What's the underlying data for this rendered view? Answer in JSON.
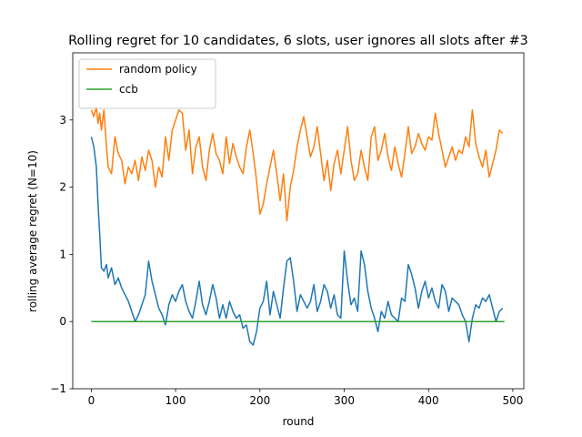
{
  "chart_data": {
    "type": "line",
    "title": "Rolling regret for 10 candidates, 6 slots, user ignores all slots after #3",
    "xlabel": "round",
    "ylabel": "rolling average regret (N=10)",
    "xlim": [
      -22,
      513
    ],
    "ylim": [
      -1,
      4.0
    ],
    "x_ticks": [
      0,
      100,
      200,
      300,
      400,
      500
    ],
    "y_ticks": [
      -1,
      0,
      1,
      2,
      3
    ],
    "legend_position": "top-left",
    "grid": false,
    "series": [
      {
        "name": "",
        "color": "#1f77b4",
        "x": [
          0,
          3,
          6,
          8,
          10,
          12,
          15,
          18,
          20,
          24,
          28,
          32,
          36,
          40,
          44,
          48,
          52,
          56,
          60,
          64,
          68,
          72,
          76,
          80,
          84,
          88,
          92,
          96,
          100,
          104,
          108,
          112,
          116,
          120,
          124,
          128,
          132,
          136,
          140,
          144,
          148,
          152,
          156,
          160,
          164,
          168,
          172,
          176,
          180,
          184,
          188,
          192,
          196,
          200,
          204,
          208,
          212,
          216,
          220,
          224,
          228,
          232,
          236,
          240,
          244,
          248,
          252,
          256,
          260,
          264,
          268,
          272,
          276,
          280,
          284,
          288,
          292,
          296,
          300,
          304,
          308,
          312,
          316,
          320,
          324,
          328,
          332,
          336,
          340,
          344,
          348,
          352,
          356,
          360,
          364,
          368,
          372,
          376,
          380,
          384,
          388,
          392,
          396,
          400,
          404,
          408,
          412,
          416,
          420,
          424,
          428,
          432,
          436,
          440,
          444,
          448,
          452,
          456,
          460,
          464,
          468,
          472,
          476,
          480,
          484,
          488
        ],
        "values": [
          2.75,
          2.6,
          2.3,
          1.75,
          1.3,
          0.8,
          0.75,
          0.85,
          0.65,
          0.8,
          0.55,
          0.65,
          0.5,
          0.4,
          0.3,
          0.15,
          0.0,
          0.1,
          0.25,
          0.4,
          0.9,
          0.6,
          0.4,
          0.2,
          0.1,
          -0.05,
          0.25,
          0.4,
          0.3,
          0.45,
          0.55,
          0.3,
          0.15,
          0.05,
          0.3,
          0.6,
          0.25,
          0.1,
          0.3,
          0.55,
          0.35,
          0.05,
          0.25,
          0.05,
          0.3,
          0.15,
          0.05,
          0.1,
          -0.1,
          -0.05,
          -0.3,
          -0.35,
          -0.15,
          0.2,
          0.3,
          0.6,
          0.1,
          0.45,
          0.25,
          0.05,
          0.5,
          0.9,
          0.95,
          0.6,
          0.15,
          0.4,
          0.3,
          0.2,
          0.3,
          0.55,
          0.15,
          0.3,
          0.55,
          0.45,
          0.2,
          0.4,
          0.1,
          0.05,
          1.05,
          0.6,
          0.25,
          0.35,
          0.15,
          1.05,
          0.85,
          0.45,
          0.2,
          0.05,
          -0.15,
          0.15,
          0.05,
          0.3,
          0.1,
          0.05,
          0.0,
          0.35,
          0.3,
          0.85,
          0.7,
          0.5,
          0.2,
          0.45,
          0.6,
          0.35,
          0.5,
          0.3,
          0.2,
          0.55,
          0.45,
          0.15,
          0.35,
          0.3,
          0.25,
          0.1,
          0.0,
          -0.3,
          0.05,
          0.25,
          0.2,
          0.35,
          0.3,
          0.4,
          0.2,
          0.0,
          0.15,
          0.2
        ]
      },
      {
        "name": "random policy",
        "color": "#ff7f0e",
        "x": [
          0,
          3,
          6,
          8,
          10,
          12,
          15,
          18,
          20,
          24,
          28,
          32,
          36,
          40,
          44,
          48,
          52,
          56,
          60,
          64,
          68,
          72,
          76,
          80,
          84,
          88,
          92,
          96,
          100,
          104,
          108,
          112,
          116,
          120,
          124,
          128,
          132,
          136,
          140,
          144,
          148,
          152,
          156,
          160,
          164,
          168,
          172,
          176,
          180,
          184,
          188,
          192,
          196,
          200,
          204,
          208,
          212,
          216,
          220,
          224,
          228,
          232,
          236,
          240,
          244,
          248,
          252,
          256,
          260,
          264,
          268,
          272,
          276,
          280,
          284,
          288,
          292,
          296,
          300,
          304,
          308,
          312,
          316,
          320,
          324,
          328,
          332,
          336,
          340,
          344,
          348,
          352,
          356,
          360,
          364,
          368,
          372,
          376,
          380,
          384,
          388,
          392,
          396,
          400,
          404,
          408,
          412,
          416,
          420,
          424,
          428,
          432,
          436,
          440,
          444,
          448,
          452,
          456,
          460,
          464,
          468,
          472,
          476,
          480,
          484,
          488
        ],
        "values": [
          3.15,
          3.05,
          3.2,
          2.95,
          3.1,
          2.85,
          3.15,
          2.6,
          2.3,
          2.2,
          2.75,
          2.5,
          2.4,
          2.05,
          2.3,
          2.2,
          2.4,
          2.1,
          2.45,
          2.25,
          2.55,
          2.4,
          2.0,
          2.3,
          2.15,
          2.75,
          2.4,
          2.85,
          3.0,
          3.15,
          3.1,
          2.55,
          2.85,
          2.2,
          2.6,
          2.75,
          2.3,
          2.1,
          2.55,
          2.8,
          2.5,
          2.4,
          2.2,
          2.75,
          2.35,
          2.65,
          2.45,
          2.3,
          2.2,
          2.6,
          2.85,
          2.5,
          2.1,
          1.6,
          1.75,
          2.05,
          2.3,
          2.55,
          2.2,
          1.8,
          2.2,
          1.5,
          2.0,
          2.25,
          2.6,
          2.85,
          3.05,
          2.75,
          2.45,
          2.6,
          2.9,
          2.5,
          2.1,
          2.4,
          1.95,
          2.35,
          2.55,
          2.2,
          2.55,
          2.9,
          2.4,
          2.1,
          2.2,
          2.55,
          2.3,
          2.1,
          2.75,
          2.9,
          2.4,
          2.55,
          2.8,
          2.45,
          2.25,
          2.6,
          2.35,
          2.15,
          2.5,
          2.9,
          2.5,
          2.6,
          2.8,
          2.65,
          2.55,
          2.75,
          2.7,
          3.1,
          2.8,
          2.55,
          2.3,
          2.45,
          2.6,
          2.4,
          2.55,
          2.5,
          2.75,
          2.6,
          3.15,
          2.65,
          2.45,
          2.3,
          2.55,
          2.15,
          2.35,
          2.55,
          2.85,
          2.8
        ]
      },
      {
        "name": "ccb",
        "color": "#2ca02c",
        "x": [
          0,
          490
        ],
        "values": [
          0.0,
          0.0
        ]
      }
    ]
  }
}
